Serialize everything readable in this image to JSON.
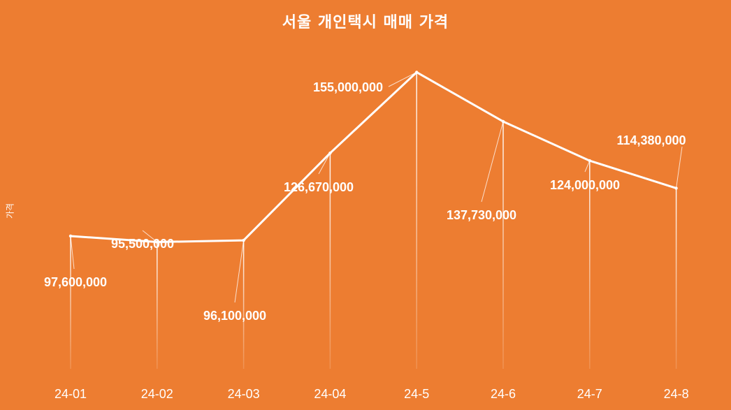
{
  "chart_data": {
    "type": "line",
    "title": "서울 개인택시 매매 가격",
    "xlabel": "",
    "ylabel": "가격",
    "categories": [
      "24-01",
      "24-02",
      "24-03",
      "24-04",
      "24-5",
      "24-6",
      "24-7",
      "24-8"
    ],
    "values": [
      97600000,
      95500000,
      96100000,
      126670000,
      155000000,
      137730000,
      124000000,
      114380000
    ],
    "data_labels": [
      "97,600,000",
      "95,500,000",
      "96,100,000",
      "126,670,000",
      "155,000,000",
      "137,730,000",
      "124,000,000",
      "114,380,000"
    ],
    "ylim": [
      0,
      170000000
    ],
    "grid": false,
    "legend": "none",
    "colors": {
      "background": "#ED7D31",
      "line": "#FFFFFF",
      "text": "#FFFFFF"
    }
  }
}
